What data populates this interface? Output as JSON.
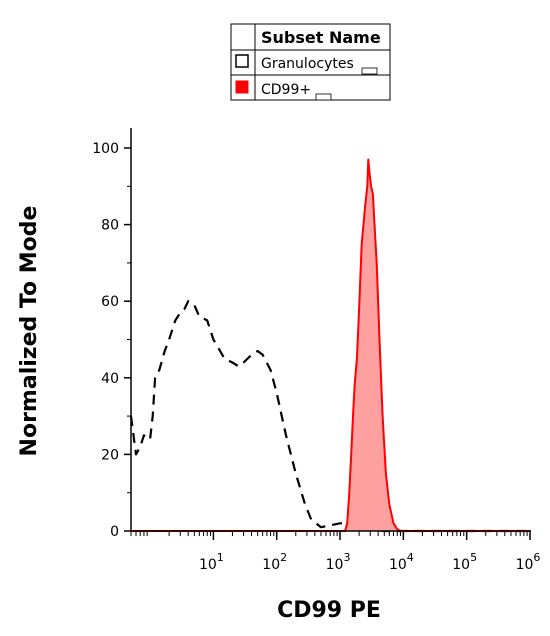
{
  "chart_data": {
    "type": "area",
    "xlabel": "CD99 PE",
    "ylabel": "Normalized To Mode",
    "xscale": "log",
    "xlim": [
      0.5,
      1000000
    ],
    "ylim": [
      0,
      100
    ],
    "x_ticks": [
      {
        "value": 10,
        "base": "10",
        "exp": "1"
      },
      {
        "value": 100,
        "base": "10",
        "exp": "2"
      },
      {
        "value": 1000,
        "base": "10",
        "exp": "3"
      },
      {
        "value": 10000,
        "base": "10",
        "exp": "4"
      },
      {
        "value": 100000,
        "base": "10",
        "exp": "5"
      },
      {
        "value": 1000000,
        "base": "10",
        "exp": "6"
      }
    ],
    "y_ticks": [
      {
        "value": 0,
        "label": "0"
      },
      {
        "value": 20,
        "label": "20"
      },
      {
        "value": 40,
        "label": "40"
      },
      {
        "value": 60,
        "label": "60"
      },
      {
        "value": 80,
        "label": "80"
      },
      {
        "value": 100,
        "label": "100"
      }
    ],
    "legend": {
      "title": "Subset Name",
      "placement": "top-center",
      "entries": [
        {
          "label": "Granulocytes",
          "swatch": "outline"
        },
        {
          "label": "CD99+",
          "swatch": "filled"
        }
      ]
    },
    "series": [
      {
        "name": "Granulocytes",
        "style": "dashed",
        "color": "#000000",
        "points": [
          [
            0.5,
            30
          ],
          [
            0.6,
            20
          ],
          [
            0.7,
            22
          ],
          [
            0.8,
            25
          ],
          [
            0.9,
            24
          ],
          [
            1.0,
            24
          ],
          [
            1.1,
            30
          ],
          [
            1.2,
            40
          ],
          [
            1.4,
            42
          ],
          [
            1.7,
            47
          ],
          [
            2,
            50
          ],
          [
            2.5,
            55
          ],
          [
            3,
            57
          ],
          [
            3.5,
            58
          ],
          [
            4,
            60
          ],
          [
            5,
            59
          ],
          [
            6,
            56
          ],
          [
            8,
            55
          ],
          [
            10,
            50
          ],
          [
            15,
            45
          ],
          [
            20,
            44
          ],
          [
            25,
            43
          ],
          [
            30,
            44
          ],
          [
            40,
            46
          ],
          [
            50,
            47
          ],
          [
            60,
            46
          ],
          [
            80,
            42
          ],
          [
            100,
            36
          ],
          [
            140,
            25
          ],
          [
            200,
            15
          ],
          [
            280,
            7
          ],
          [
            350,
            3
          ],
          [
            500,
            1
          ],
          [
            1000,
            2
          ],
          [
            2000,
            2
          ],
          [
            2500,
            0.5
          ],
          [
            5000,
            0
          ],
          [
            100000,
            0
          ],
          [
            1000000,
            0
          ]
        ]
      },
      {
        "name": "CD99+",
        "style": "filled",
        "color": "#ff0000",
        "fill": "#ffa0a0",
        "points": [
          [
            0.5,
            0
          ],
          [
            1200,
            0
          ],
          [
            1300,
            2
          ],
          [
            1400,
            10
          ],
          [
            1500,
            20
          ],
          [
            1600,
            30
          ],
          [
            1700,
            38
          ],
          [
            1850,
            45
          ],
          [
            2000,
            58
          ],
          [
            2200,
            75
          ],
          [
            2500,
            85
          ],
          [
            2700,
            90
          ],
          [
            2800,
            97
          ],
          [
            2900,
            94
          ],
          [
            3100,
            90
          ],
          [
            3300,
            88
          ],
          [
            3500,
            80
          ],
          [
            3800,
            70
          ],
          [
            4200,
            50
          ],
          [
            4700,
            30
          ],
          [
            5300,
            15
          ],
          [
            6000,
            7
          ],
          [
            7000,
            2
          ],
          [
            8000,
            0.5
          ],
          [
            9000,
            0
          ],
          [
            1000000,
            0
          ]
        ]
      }
    ]
  }
}
